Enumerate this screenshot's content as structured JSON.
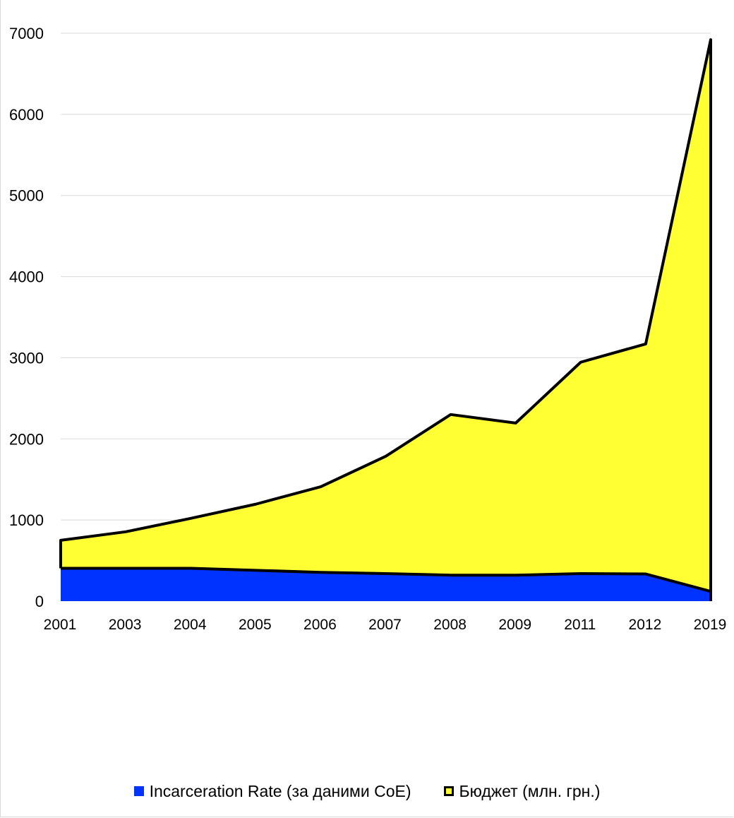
{
  "chart_data": {
    "type": "area",
    "stacked": false,
    "categories": [
      "2001",
      "2003",
      "2004",
      "2005",
      "2006",
      "2007",
      "2008",
      "2009",
      "2011",
      "2012",
      "2019"
    ],
    "series": [
      {
        "name": "Бюджет (млн. грн.)",
        "values": [
          750,
          855,
          1020,
          1195,
          1410,
          1785,
          2300,
          2195,
          2945,
          3170,
          6920
        ],
        "fill": "#ffff33",
        "stroke": "#000000"
      },
      {
        "name": "Incarceration Rate (за даними CoE)",
        "values": [
          405,
          405,
          405,
          380,
          355,
          340,
          320,
          320,
          340,
          335,
          120
        ],
        "fill": "#0033ff",
        "stroke": "#000000"
      }
    ],
    "y_ticks": [
      "0",
      "1000",
      "2000",
      "3000",
      "4000",
      "5000",
      "6000",
      "7000"
    ],
    "ylim": [
      0,
      7000
    ],
    "grid": true,
    "legend_position": "bottom",
    "title": "",
    "xlabel": "",
    "ylabel": ""
  }
}
